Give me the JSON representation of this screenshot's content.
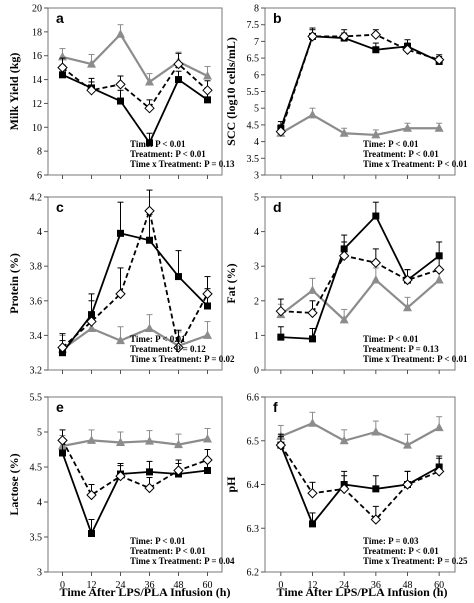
{
  "figure": {
    "xlabel": "Time After LPS/PLA Infusion (h)"
  },
  "chart_data": [
    {
      "type": "line",
      "panel": "a",
      "ylabel": "Milk Yield (kg)",
      "x": [
        0,
        12,
        24,
        36,
        48,
        60
      ],
      "ylim": [
        6,
        20
      ],
      "yticks": [
        6,
        8,
        10,
        12,
        14,
        16,
        18,
        20
      ],
      "series": [
        {
          "style": "gray-triangle",
          "color": "#8c8c8c",
          "values": [
            15.9,
            15.3,
            17.8,
            13.8,
            15.5,
            14.3
          ],
          "err": [
            0.7,
            0.8,
            0.8,
            0.7,
            0.8,
            0.8
          ]
        },
        {
          "style": "black-square",
          "color": "#000000",
          "values": [
            14.4,
            13.3,
            12.2,
            8.7,
            14.0,
            12.3
          ],
          "err": [
            0.8,
            0.8,
            0.9,
            0.8,
            0.7,
            0.8
          ]
        },
        {
          "style": "dashed-diamond",
          "color": "#000000",
          "values": [
            15.0,
            13.1,
            13.6,
            11.6,
            15.3,
            13.1
          ],
          "err": [
            0.8,
            0.7,
            0.7,
            0.7,
            0.9,
            0.8
          ]
        }
      ],
      "stats": [
        "Time: P < 0.01",
        "Treatment: P < 0.01",
        "Time x Treatment: P = 0.13"
      ]
    },
    {
      "type": "line",
      "panel": "b",
      "ylabel": "SCC (log10 cells/mL)",
      "x": [
        0,
        12,
        24,
        36,
        48,
        60
      ],
      "ylim": [
        3,
        8
      ],
      "yticks": [
        3,
        3.5,
        4,
        4.5,
        5,
        5.5,
        6,
        6.5,
        7,
        7.5,
        8
      ],
      "series": [
        {
          "style": "gray-triangle",
          "color": "#8c8c8c",
          "values": [
            4.25,
            4.8,
            4.25,
            4.2,
            4.4,
            4.4
          ],
          "err": [
            0.15,
            0.2,
            0.15,
            0.15,
            0.15,
            0.15
          ]
        },
        {
          "style": "black-square",
          "color": "#000000",
          "values": [
            4.4,
            7.15,
            7.1,
            6.75,
            6.85,
            6.4
          ],
          "err": [
            0.2,
            0.2,
            0.15,
            0.2,
            0.2,
            0.15
          ]
        },
        {
          "style": "dashed-diamond",
          "color": "#000000",
          "values": [
            4.3,
            7.15,
            7.15,
            7.2,
            6.75,
            6.45
          ],
          "err": [
            0.2,
            0.25,
            0.2,
            0.15,
            0.2,
            0.15
          ]
        }
      ],
      "stats": [
        "Time: P < 0.01",
        "Treatment: P < 0.01",
        "Time x Treatment: P < 0.01"
      ]
    },
    {
      "type": "line",
      "panel": "c",
      "ylabel": "Protein (%)",
      "x": [
        0,
        12,
        24,
        36,
        48,
        60
      ],
      "ylim": [
        3.2,
        4.2
      ],
      "yticks": [
        3.2,
        3.4,
        3.6,
        3.8,
        4,
        4.2
      ],
      "series": [
        {
          "style": "gray-triangle",
          "color": "#8c8c8c",
          "values": [
            3.32,
            3.44,
            3.37,
            3.44,
            3.34,
            3.4
          ],
          "err": [
            0.08,
            0.08,
            0.08,
            0.08,
            0.08,
            0.08
          ]
        },
        {
          "style": "black-square",
          "color": "#000000",
          "values": [
            3.3,
            3.52,
            3.99,
            3.95,
            3.74,
            3.57
          ],
          "err": [
            0.07,
            0.12,
            0.18,
            0.15,
            0.15,
            0.1
          ]
        },
        {
          "style": "dashed-diamond",
          "color": "#000000",
          "values": [
            3.33,
            3.48,
            3.64,
            4.12,
            3.33,
            3.64
          ],
          "err": [
            0.08,
            0.12,
            0.15,
            0.12,
            0.1,
            0.1
          ]
        }
      ],
      "stats": [
        "Time: P < 0.01",
        "Treatment: P = 0.12",
        "Time x Treatment: P = 0.02"
      ]
    },
    {
      "type": "line",
      "panel": "d",
      "ylabel": "Fat (%)",
      "x": [
        0,
        12,
        24,
        36,
        48,
        60
      ],
      "ylim": [
        0,
        5
      ],
      "yticks": [
        0,
        1,
        2,
        3,
        4,
        5
      ],
      "series": [
        {
          "style": "gray-triangle",
          "color": "#8c8c8c",
          "values": [
            1.6,
            2.3,
            1.45,
            2.6,
            1.8,
            2.6
          ],
          "err": [
            0.3,
            0.35,
            0.3,
            0.35,
            0.3,
            0.35
          ]
        },
        {
          "style": "black-square",
          "color": "#000000",
          "values": [
            0.95,
            0.9,
            3.5,
            4.45,
            2.6,
            3.3
          ],
          "err": [
            0.3,
            0.3,
            0.4,
            0.4,
            0.3,
            0.4
          ]
        },
        {
          "style": "dashed-diamond",
          "color": "#000000",
          "values": [
            1.7,
            1.65,
            3.3,
            3.1,
            2.6,
            2.9
          ],
          "err": [
            0.35,
            0.35,
            0.4,
            0.4,
            0.3,
            0.35
          ]
        }
      ],
      "stats": [
        "Time: P < 0.01",
        "Treatment: P = 0.13",
        "Time x Treatment: P < 0.01"
      ]
    },
    {
      "type": "line",
      "panel": "e",
      "ylabel": "Lactose (%)",
      "x": [
        0,
        12,
        24,
        36,
        48,
        60
      ],
      "ylim": [
        3,
        5.5
      ],
      "yticks": [
        3,
        3.5,
        4,
        4.5,
        5,
        5.5
      ],
      "series": [
        {
          "style": "gray-triangle",
          "color": "#8c8c8c",
          "values": [
            4.8,
            4.88,
            4.85,
            4.87,
            4.82,
            4.9
          ],
          "err": [
            0.15,
            0.15,
            0.15,
            0.15,
            0.15,
            0.15
          ]
        },
        {
          "style": "black-square",
          "color": "#000000",
          "values": [
            4.7,
            3.55,
            4.4,
            4.43,
            4.4,
            4.45
          ],
          "err": [
            0.15,
            0.2,
            0.15,
            0.15,
            0.15,
            0.15
          ]
        },
        {
          "style": "dashed-diamond",
          "color": "#000000",
          "values": [
            4.88,
            4.1,
            4.37,
            4.2,
            4.45,
            4.6
          ],
          "err": [
            0.15,
            0.15,
            0.15,
            0.15,
            0.15,
            0.15
          ]
        }
      ],
      "stats": [
        "Time: P < 0.01",
        "Treatment: P < 0.01",
        "Time x Treatment: P = 0.04"
      ]
    },
    {
      "type": "line",
      "panel": "f",
      "ylabel": "pH",
      "x": [
        0,
        12,
        24,
        36,
        48,
        60
      ],
      "ylim": [
        6.2,
        6.6
      ],
      "yticks": [
        6.2,
        6.3,
        6.4,
        6.5,
        6.6
      ],
      "series": [
        {
          "style": "gray-triangle",
          "color": "#8c8c8c",
          "values": [
            6.51,
            6.54,
            6.5,
            6.52,
            6.49,
            6.53
          ],
          "err": [
            0.025,
            0.025,
            0.025,
            0.025,
            0.025,
            0.025
          ]
        },
        {
          "style": "black-square",
          "color": "#000000",
          "values": [
            6.49,
            6.31,
            6.4,
            6.39,
            6.4,
            6.44
          ],
          "err": [
            0.02,
            0.025,
            0.03,
            0.03,
            0.03,
            0.025
          ]
        },
        {
          "style": "dashed-diamond",
          "color": "#000000",
          "values": [
            6.49,
            6.38,
            6.39,
            6.32,
            6.4,
            6.43
          ],
          "err": [
            0.025,
            0.025,
            0.03,
            0.03,
            0.03,
            0.03
          ]
        }
      ],
      "stats": [
        "Time: P = 0.03",
        "Treatment: P < 0.01",
        "Time x Treatment: P = 0.25"
      ]
    }
  ]
}
